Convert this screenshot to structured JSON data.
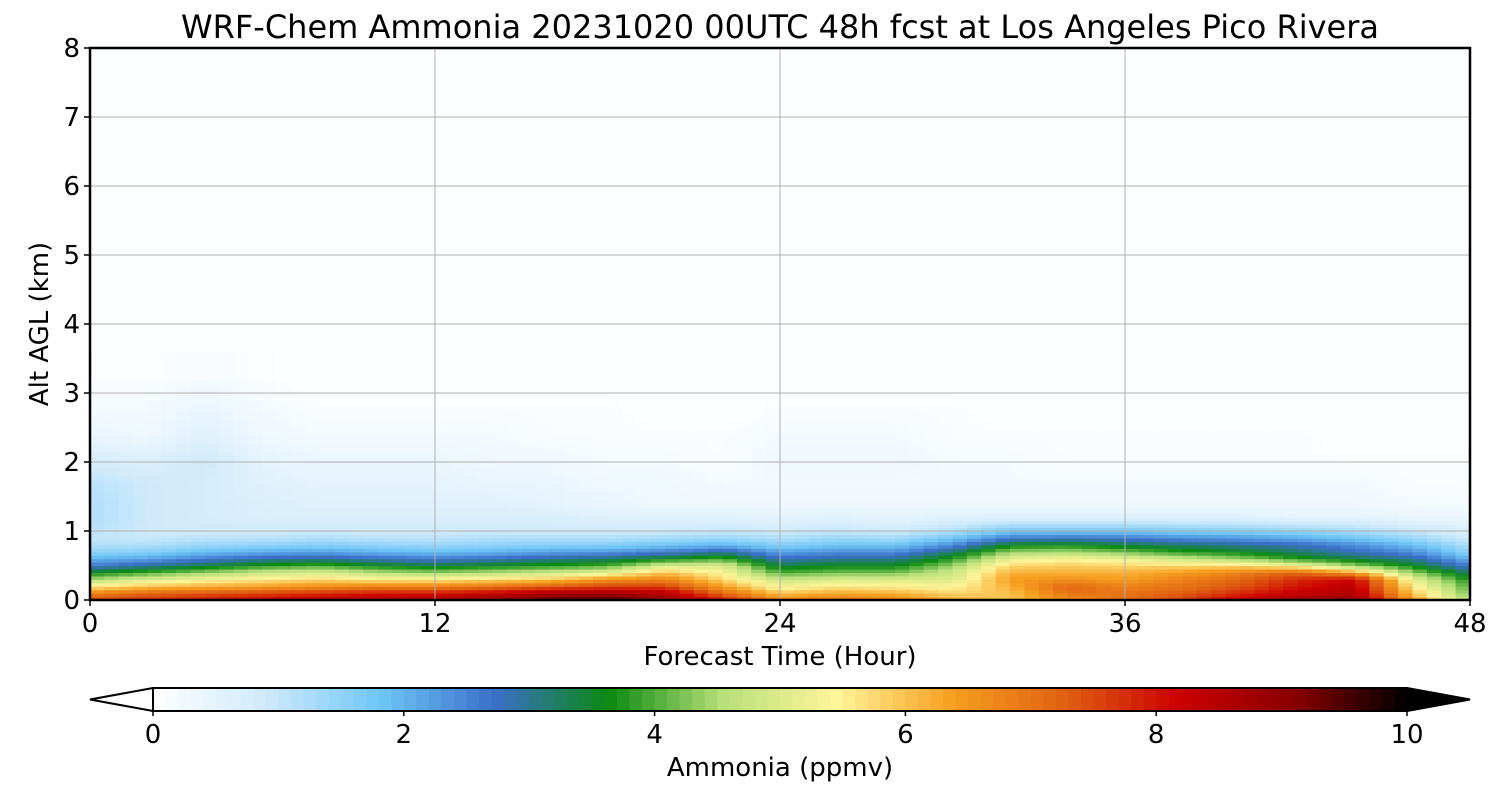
{
  "chart_data": {
    "type": "heatmap",
    "title": "WRF-Chem Ammonia  20231020 00UTC 48h fcst at Los Angeles Pico Rivera",
    "xlabel": "Forecast Time (Hour)",
    "ylabel": "Alt AGL (km)",
    "xlim": [
      0,
      48
    ],
    "ylim": [
      0,
      8
    ],
    "x_ticks": [
      "0",
      "12",
      "24",
      "36",
      "48"
    ],
    "y_ticks": [
      "0",
      "1",
      "2",
      "3",
      "4",
      "5",
      "6",
      "7",
      "8"
    ],
    "grid": true,
    "colorbar": {
      "label": "Ammonia  (ppmv)",
      "range": [
        0,
        10
      ],
      "ticks": [
        "0",
        "2",
        "4",
        "6",
        "8",
        "10"
      ],
      "extend": "both",
      "colors": [
        "#ffffff",
        "#cfeafb",
        "#6ec6f7",
        "#3a6fc8",
        "#0a8a10",
        "#b8e07a",
        "#fff59a",
        "#f7a020",
        "#e06010",
        "#cc0000",
        "#8a0000",
        "#000000"
      ]
    },
    "x": [
      0,
      2,
      4,
      6,
      8,
      10,
      12,
      14,
      16,
      18,
      20,
      22,
      24,
      26,
      28,
      30,
      32,
      34,
      36,
      38,
      40,
      42,
      44,
      46,
      48
    ],
    "y": [
      0,
      0.1,
      0.2,
      0.3,
      0.4,
      0.5,
      0.6,
      0.7,
      0.8,
      0.9,
      1.0,
      1.2,
      1.4,
      1.7,
      2.0,
      2.4,
      2.8,
      3.2,
      4,
      5,
      6,
      7,
      8
    ],
    "z": [
      [
        7.5,
        7.8,
        8.0,
        8.2,
        8.4,
        8.6,
        8.8,
        9.0,
        9.4,
        9.6,
        9.0,
        8.0,
        6.8,
        7.0,
        6.8,
        6.2,
        6.0,
        6.5,
        7.0,
        7.6,
        8.4,
        8.8,
        9.0,
        6.5,
        4.5
      ],
      [
        6.8,
        7.2,
        7.4,
        7.6,
        7.8,
        8.0,
        8.0,
        8.3,
        8.7,
        8.8,
        8.5,
        7.2,
        6.0,
        6.3,
        6.2,
        5.8,
        6.0,
        7.0,
        7.0,
        7.3,
        7.8,
        8.3,
        8.6,
        6.0,
        4.2
      ],
      [
        5.6,
        6.0,
        6.2,
        6.4,
        6.6,
        6.8,
        6.8,
        7.0,
        7.3,
        7.6,
        7.6,
        6.4,
        5.3,
        5.6,
        5.5,
        5.4,
        6.2,
        7.2,
        6.8,
        7.0,
        7.4,
        8.0,
        8.4,
        5.6,
        4.0
      ],
      [
        4.5,
        5.0,
        5.4,
        5.6,
        5.8,
        5.6,
        5.6,
        5.8,
        6.0,
        6.6,
        6.8,
        5.8,
        4.8,
        5.0,
        5.0,
        5.0,
        6.4,
        6.6,
        6.4,
        6.8,
        7.2,
        7.8,
        8.2,
        5.2,
        3.7
      ],
      [
        3.6,
        4.0,
        4.4,
        4.8,
        5.0,
        4.6,
        4.4,
        4.6,
        4.8,
        5.2,
        6.0,
        5.4,
        4.0,
        4.2,
        4.2,
        4.8,
        6.2,
        6.2,
        6.2,
        6.4,
        6.8,
        7.2,
        6.4,
        4.4,
        3.2
      ],
      [
        2.6,
        3.0,
        3.4,
        3.8,
        4.0,
        3.6,
        3.4,
        3.6,
        3.8,
        4.0,
        5.0,
        5.0,
        3.4,
        3.6,
        3.6,
        4.4,
        5.8,
        5.9,
        5.8,
        5.8,
        5.8,
        5.4,
        4.4,
        3.6,
        2.6
      ],
      [
        2.0,
        2.2,
        2.6,
        2.9,
        3.0,
        2.8,
        2.6,
        2.8,
        3.0,
        3.2,
        3.6,
        4.0,
        2.8,
        3.0,
        3.0,
        3.8,
        5.2,
        5.4,
        5.2,
        4.8,
        4.4,
        3.8,
        3.4,
        3.0,
        2.0
      ],
      [
        1.5,
        1.6,
        1.9,
        2.1,
        2.2,
        2.0,
        1.9,
        2.0,
        2.2,
        2.3,
        2.6,
        3.0,
        2.2,
        2.4,
        2.4,
        3.2,
        4.4,
        4.5,
        4.2,
        3.8,
        3.6,
        3.2,
        2.8,
        2.4,
        1.5
      ],
      [
        1.2,
        1.2,
        1.4,
        1.5,
        1.6,
        1.5,
        1.4,
        1.5,
        1.6,
        1.6,
        1.8,
        2.0,
        1.6,
        1.8,
        1.8,
        2.4,
        3.6,
        3.7,
        3.4,
        3.2,
        3.0,
        2.8,
        2.4,
        1.9,
        1.2
      ],
      [
        1.0,
        1.0,
        1.1,
        1.1,
        1.2,
        1.1,
        1.1,
        1.2,
        1.2,
        1.2,
        1.3,
        1.4,
        1.2,
        1.4,
        1.3,
        1.8,
        2.6,
        2.7,
        2.6,
        2.4,
        2.3,
        2.1,
        1.8,
        1.4,
        0.9
      ],
      [
        1.1,
        0.9,
        0.9,
        0.9,
        0.9,
        0.9,
        0.9,
        0.9,
        0.9,
        0.9,
        0.9,
        1.0,
        0.9,
        1.0,
        0.9,
        1.2,
        1.8,
        1.8,
        1.8,
        1.7,
        1.6,
        1.5,
        1.3,
        1.0,
        0.7
      ],
      [
        1.2,
        0.9,
        0.8,
        0.7,
        0.7,
        0.7,
        0.7,
        0.7,
        0.7,
        0.6,
        0.6,
        0.6,
        0.5,
        0.6,
        0.5,
        0.6,
        0.6,
        0.6,
        0.6,
        0.6,
        0.6,
        0.5,
        0.5,
        0.4,
        0.4
      ],
      [
        1.2,
        0.9,
        0.8,
        0.7,
        0.6,
        0.6,
        0.6,
        0.6,
        0.5,
        0.4,
        0.3,
        0.3,
        0.3,
        0.3,
        0.3,
        0.3,
        0.3,
        0.3,
        0.3,
        0.3,
        0.3,
        0.3,
        0.3,
        0.2,
        0.2
      ],
      [
        1.1,
        0.9,
        0.8,
        0.6,
        0.5,
        0.5,
        0.5,
        0.4,
        0.4,
        0.3,
        0.3,
        0.2,
        0.2,
        0.2,
        0.2,
        0.2,
        0.2,
        0.2,
        0.2,
        0.2,
        0.2,
        0.2,
        0.2,
        0.1,
        0.1
      ],
      [
        0.8,
        0.7,
        0.9,
        0.5,
        0.4,
        0.4,
        0.4,
        0.3,
        0.3,
        0.2,
        0.2,
        0.1,
        0.3,
        0.3,
        0.3,
        0.2,
        0.2,
        0.1,
        0.1,
        0.1,
        0.1,
        0.1,
        0.1,
        0.1,
        0.1
      ],
      [
        0.4,
        0.3,
        0.6,
        0.3,
        0.2,
        0.2,
        0.2,
        0.2,
        0.1,
        0.1,
        0.1,
        0.1,
        0.2,
        0.2,
        0.2,
        0.1,
        0.1,
        0.1,
        0.1,
        0.1,
        0.1,
        0.1,
        0.0,
        0.0,
        0.0
      ],
      [
        0.2,
        0.2,
        0.4,
        0.2,
        0.1,
        0.1,
        0.1,
        0.1,
        0.1,
        0.1,
        0.0,
        0.0,
        0.1,
        0.1,
        0.1,
        0.1,
        0.0,
        0.0,
        0.0,
        0.0,
        0.0,
        0.0,
        0.0,
        0.0,
        0.0
      ],
      [
        0.1,
        0.1,
        0.2,
        0.1,
        0.0,
        0.0,
        0.0,
        0.0,
        0.0,
        0.0,
        0.0,
        0.0,
        0.0,
        0.0,
        0.0,
        0.0,
        0.0,
        0.0,
        0.0,
        0.0,
        0.0,
        0.0,
        0.0,
        0.0,
        0.0
      ],
      [
        0.0,
        0.0,
        0.0,
        0.0,
        0.0,
        0.0,
        0.0,
        0.0,
        0.0,
        0.0,
        0.0,
        0.0,
        0.0,
        0.0,
        0.0,
        0.0,
        0.0,
        0.0,
        0.0,
        0.0,
        0.0,
        0.0,
        0.0,
        0.0,
        0.0
      ],
      [
        0.0,
        0.0,
        0.0,
        0.0,
        0.0,
        0.0,
        0.0,
        0.0,
        0.0,
        0.0,
        0.0,
        0.0,
        0.0,
        0.0,
        0.0,
        0.0,
        0.0,
        0.0,
        0.0,
        0.0,
        0.0,
        0.0,
        0.0,
        0.0,
        0.0
      ],
      [
        0.0,
        0.0,
        0.0,
        0.0,
        0.0,
        0.0,
        0.0,
        0.0,
        0.0,
        0.0,
        0.0,
        0.0,
        0.0,
        0.0,
        0.0,
        0.0,
        0.0,
        0.0,
        0.0,
        0.0,
        0.0,
        0.0,
        0.0,
        0.0,
        0.0
      ],
      [
        0.0,
        0.0,
        0.0,
        0.0,
        0.0,
        0.0,
        0.0,
        0.0,
        0.0,
        0.0,
        0.0,
        0.0,
        0.0,
        0.0,
        0.0,
        0.0,
        0.0,
        0.0,
        0.0,
        0.0,
        0.0,
        0.0,
        0.0,
        0.0,
        0.0
      ],
      [
        0.0,
        0.0,
        0.0,
        0.0,
        0.0,
        0.0,
        0.0,
        0.0,
        0.0,
        0.0,
        0.0,
        0.0,
        0.0,
        0.0,
        0.0,
        0.0,
        0.0,
        0.0,
        0.0,
        0.0,
        0.0,
        0.0,
        0.0,
        0.0,
        0.0
      ]
    ]
  }
}
